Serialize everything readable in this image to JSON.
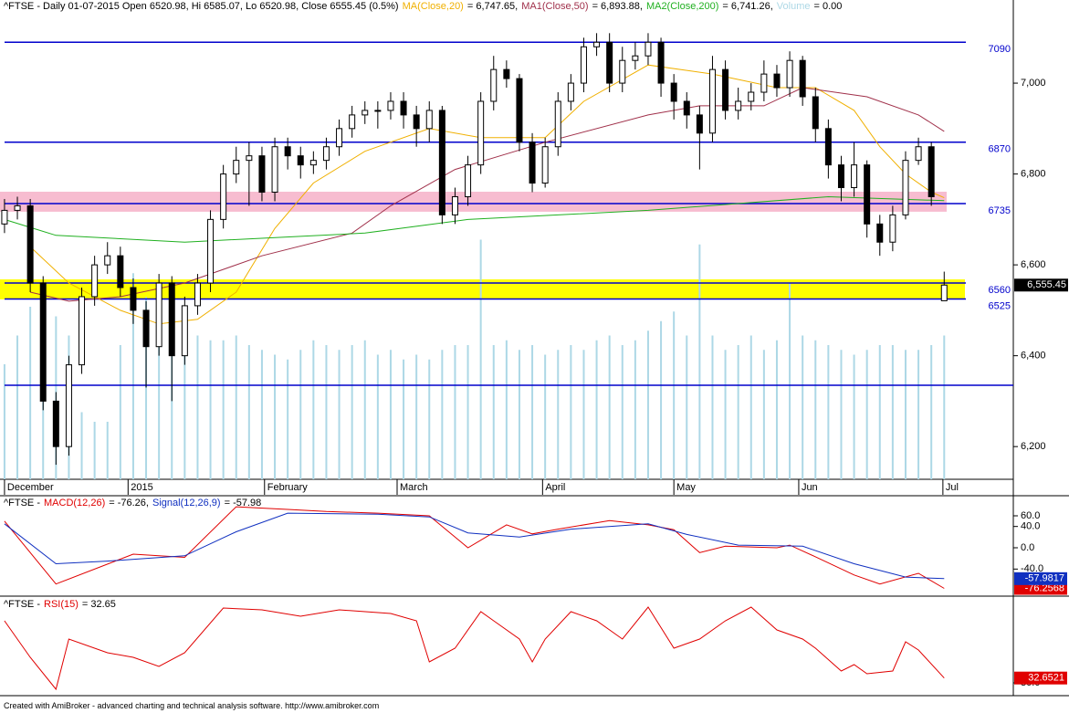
{
  "chart_data": [
    {
      "type": "candlestick",
      "title": "^FTSE - Daily 01-07-2015 Open 6520.98, Hi 6585.07, Lo 6520.98, Close 6555.45 (0.5%)",
      "x": [
        0,
        1,
        2,
        3,
        4,
        5,
        6,
        7,
        8,
        9,
        10,
        11,
        12,
        13,
        14,
        15,
        16,
        17,
        18,
        19,
        20,
        21,
        22,
        23,
        24,
        25,
        26,
        27,
        28,
        29,
        30,
        31,
        32,
        33,
        34,
        35,
        36,
        37,
        38,
        39,
        40,
        41,
        42,
        43,
        44,
        45,
        46,
        47,
        48,
        49,
        50,
        51,
        52,
        53,
        54,
        55,
        56,
        57,
        58,
        59,
        60,
        61,
        62,
        63,
        64,
        65,
        66,
        67,
        68,
        69,
        70,
        71,
        72,
        73
      ],
      "open": [
        6690,
        6720,
        6730,
        6560,
        6300,
        6200,
        6380,
        6530,
        6600,
        6620,
        6550,
        6500,
        6420,
        6560,
        6400,
        6510,
        6560,
        6700,
        6800,
        6830,
        6840,
        6760,
        6860,
        6840,
        6820,
        6830,
        6860,
        6900,
        6930,
        6940,
        6940,
        6960,
        6930,
        6900,
        6940,
        6710,
        6750,
        6820,
        6960,
        7030,
        7010,
        6870,
        6780,
        6860,
        6960,
        7000,
        7080,
        7090,
        7000,
        7050,
        7060,
        7090,
        7000,
        6960,
        6930,
        6890,
        7030,
        6940,
        6960,
        6980,
        7020,
        6990,
        7050,
        6970,
        6900,
        6820,
        6770,
        6820,
        6690,
        6650,
        6710,
        6830,
        6860,
        6520.98
      ],
      "high": [
        6745,
        6750,
        6745,
        6575,
        6320,
        6400,
        6550,
        6620,
        6650,
        6640,
        6570,
        6520,
        6580,
        6575,
        6530,
        6580,
        6720,
        6820,
        6860,
        6870,
        6860,
        6880,
        6880,
        6860,
        6850,
        6880,
        6920,
        6950,
        6960,
        6960,
        6980,
        6980,
        6950,
        6960,
        6950,
        6770,
        6840,
        6980,
        7060,
        7050,
        7020,
        6890,
        6880,
        6980,
        7020,
        7100,
        7110,
        7110,
        7080,
        7090,
        7110,
        7100,
        7020,
        6980,
        6950,
        7060,
        7050,
        6990,
        7000,
        7050,
        7040,
        7070,
        7060,
        6990,
        6920,
        6840,
        6870,
        6830,
        6710,
        6730,
        6850,
        6880,
        6870,
        6585.07
      ],
      "low": [
        6670,
        6700,
        6540,
        6280,
        6160,
        6180,
        6360,
        6510,
        6580,
        6530,
        6470,
        6330,
        6400,
        6300,
        6380,
        6490,
        6540,
        6680,
        6780,
        6730,
        6740,
        6740,
        6810,
        6790,
        6800,
        6810,
        6840,
        6880,
        6910,
        6900,
        6920,
        6900,
        6860,
        6870,
        6690,
        6690,
        6730,
        6800,
        6940,
        6990,
        6850,
        6760,
        6770,
        6840,
        6940,
        6980,
        7060,
        6980,
        6980,
        7030,
        7040,
        6970,
        6920,
        6900,
        6810,
        6870,
        6920,
        6920,
        6940,
        6960,
        6970,
        6970,
        6950,
        6870,
        6790,
        6740,
        6750,
        6660,
        6620,
        6630,
        6700,
        6820,
        6730,
        6520.98
      ],
      "close": [
        6720,
        6730,
        6560,
        6300,
        6200,
        6380,
        6530,
        6600,
        6620,
        6550,
        6500,
        6420,
        6560,
        6400,
        6510,
        6560,
        6700,
        6800,
        6830,
        6840,
        6760,
        6860,
        6840,
        6820,
        6830,
        6860,
        6900,
        6930,
        6940,
        6940,
        6960,
        6930,
        6900,
        6940,
        6710,
        6750,
        6820,
        6960,
        7030,
        7010,
        6870,
        6780,
        6860,
        6960,
        7000,
        7080,
        7090,
        7000,
        7050,
        7060,
        7090,
        7000,
        6960,
        6930,
        6890,
        7030,
        6940,
        6960,
        6980,
        7020,
        6990,
        7050,
        6970,
        6900,
        6820,
        6770,
        6820,
        6690,
        6650,
        6710,
        6830,
        6860,
        6750,
        6555.45
      ],
      "last_label": "6,555.45",
      "up_color": "#ffffff",
      "down_color": "#000000",
      "series": [
        {
          "name": "MA(Close,20)",
          "value_label": "= 6,747.65,",
          "color": "#f0b000",
          "x": [
            2,
            5,
            9,
            12,
            15,
            18,
            21,
            24,
            28,
            33,
            37,
            42,
            45,
            50,
            55,
            60,
            63,
            66,
            68,
            70,
            72,
            73
          ],
          "values": [
            6640,
            6560,
            6500,
            6470,
            6480,
            6540,
            6680,
            6780,
            6850,
            6900,
            6880,
            6880,
            6960,
            7040,
            7020,
            6990,
            6990,
            6940,
            6860,
            6800,
            6760,
            6747.65
          ]
        },
        {
          "name": "MA1(Close,50)",
          "value_label": "= 6,893.88,",
          "color": "#a0304a",
          "x": [
            2,
            5,
            9,
            14,
            20,
            27,
            30,
            35,
            42,
            50,
            54,
            59,
            62,
            67,
            71,
            73
          ],
          "values": [
            6540,
            6520,
            6530,
            6560,
            6620,
            6670,
            6730,
            6810,
            6870,
            6930,
            6950,
            6950,
            6990,
            6970,
            6930,
            6893.88
          ]
        },
        {
          "name": "MA2(Close,200)",
          "value_label": "= 6,741.26,",
          "color": "#20b020",
          "x": [
            0,
            4,
            14,
            28,
            36,
            50,
            64,
            73
          ],
          "values": [
            6700,
            6665,
            6650,
            6670,
            6700,
            6720,
            6750,
            6741.26
          ]
        }
      ],
      "volume": {
        "name": "Volume",
        "value_label": "= 0.00",
        "color": "#add8e6",
        "ylim": [
          0,
          100
        ],
        "values": [
          24,
          30,
          36,
          38,
          34,
          30,
          14,
          12,
          12,
          28,
          43,
          38,
          36,
          38,
          30,
          30,
          29,
          29,
          30,
          28,
          27,
          26,
          25,
          27,
          29,
          28,
          27,
          28,
          29,
          26,
          27,
          25,
          26,
          25,
          27,
          28,
          28,
          50,
          28,
          29,
          27,
          28,
          26,
          27,
          28,
          27,
          29,
          30,
          28,
          29,
          31,
          33,
          35,
          30,
          49,
          30,
          27,
          28,
          30,
          27,
          29,
          41,
          30,
          29,
          28,
          27,
          26,
          27,
          28,
          28,
          27,
          27,
          28,
          30
        ]
      },
      "levels": [
        7090,
        6870,
        6735,
        6560,
        6525
      ],
      "unlabeled_levels": [
        6335
      ],
      "level_color": "#0000cc",
      "bands": [
        {
          "from": 6717,
          "to": 6761,
          "color": "#f7bcd0"
        },
        {
          "from": 6524,
          "to": 6568,
          "color": "#ffff00"
        }
      ],
      "xlim": [
        -0.35,
        78.37
      ],
      "ylim": [
        6128,
        7183
      ],
      "yticks": [
        {
          "value": 6200,
          "label": "6,200"
        },
        {
          "value": 6400,
          "label": "6,400"
        },
        {
          "value": 6600,
          "label": "6,600"
        },
        {
          "value": 6800,
          "label": "6,800"
        },
        {
          "value": 7000,
          "label": "7,000"
        }
      ],
      "xticks": [
        {
          "value": 0,
          "label": "December"
        },
        {
          "value": 9.6,
          "label": "2015"
        },
        {
          "value": 20.2,
          "label": "February"
        },
        {
          "value": 30.5,
          "label": "March"
        },
        {
          "value": 41.8,
          "label": "April"
        },
        {
          "value": 52,
          "label": "May"
        },
        {
          "value": 61.7,
          "label": "Jun"
        },
        {
          "value": 72.9,
          "label": "Jul"
        }
      ]
    },
    {
      "type": "line",
      "title": "^FTSE -",
      "series": [
        {
          "name": "MACD(12,26)",
          "value_label": "= -76.26,",
          "color": "#e00000",
          "last_label": "-76.2568",
          "x": [
            0,
            4,
            10,
            14,
            18,
            22,
            25,
            29,
            33,
            36,
            39,
            41,
            43,
            47,
            50,
            52,
            54,
            56,
            60,
            61,
            63,
            66,
            68,
            71,
            73
          ],
          "values": [
            50,
            -68,
            -12,
            -18,
            77,
            72,
            68,
            65,
            60,
            0,
            43,
            26,
            35,
            51,
            43,
            34,
            -9,
            3,
            0,
            5,
            -17,
            -51,
            -68,
            -48,
            -76.2568
          ]
        },
        {
          "name": "Signal(12,26,9)",
          "value_label": "= -57.98",
          "color": "#1030c0",
          "last_label": "-57.9817",
          "x": [
            0,
            4,
            8,
            14,
            18,
            22,
            29,
            33,
            36,
            40,
            44,
            50,
            53,
            57,
            62,
            66,
            70,
            73
          ],
          "values": [
            45,
            -30,
            -25,
            -15,
            30,
            65,
            63,
            58,
            28,
            20,
            35,
            45,
            25,
            5,
            3,
            -30,
            -55,
            -57.9817
          ]
        }
      ],
      "xlim": [
        -0.35,
        78.37
      ],
      "ylim": [
        -85.7,
        94.3
      ],
      "yticks": [
        {
          "value": 60,
          "label": "60.0"
        },
        {
          "value": 40,
          "label": "40.0"
        },
        {
          "value": 0,
          "label": "0.0"
        },
        {
          "value": -40,
          "label": "-40.0"
        }
      ]
    },
    {
      "type": "line",
      "title": "^FTSE -",
      "series": [
        {
          "name": "RSI(15)",
          "value_label": "= 32.65",
          "color": "#e00000",
          "last_label": "32.6521",
          "x": [
            0,
            2,
            4,
            5,
            8,
            10,
            12,
            14,
            17,
            20,
            23,
            26,
            30,
            32,
            33,
            35,
            37,
            38,
            40,
            41,
            42,
            44,
            46,
            48,
            50,
            52,
            54,
            56,
            58,
            60,
            62,
            63,
            65,
            66,
            67,
            69,
            70,
            71,
            73
          ],
          "values": [
            64,
            44,
            26.5,
            54,
            46.5,
            44,
            39,
            46.5,
            71,
            70,
            66.5,
            70,
            68,
            64,
            41.5,
            49,
            69,
            64,
            54,
            41.5,
            54,
            69,
            64,
            54,
            71.5,
            49,
            54,
            64,
            71.5,
            59,
            54,
            49,
            36.5,
            40,
            35,
            36.5,
            52.5,
            48,
            32.6521
          ]
        }
      ],
      "xlim": [
        -0.35,
        78.37
      ],
      "ylim": [
        25,
        75
      ],
      "yticks": [
        {
          "value": 30,
          "label": "30.0"
        }
      ]
    }
  ],
  "footer": "Created with AmiBroker - advanced charting and technical analysis software. http://www.amibroker.com"
}
